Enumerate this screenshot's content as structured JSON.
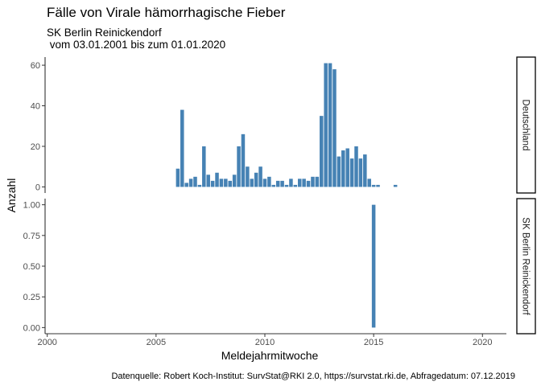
{
  "title": "Fälle von Virale hämorrhagische Fieber",
  "subtitle_line1": "SK Berlin Reinickendorf",
  "subtitle_line2": " vom 03.01.2001 bis zum 01.01.2020",
  "caption": "Datenquelle: Robert Koch-Institut: SurvStat@RKI 2.0, https://survstat.rki.de, Abfragedatum: 07.12.2019",
  "colors": {
    "bar": "#4682b4",
    "axis": "#333333",
    "text": "#000000"
  },
  "chart_data": {
    "type": "bar",
    "xlabel": "Meldejahrmitwoche",
    "ylabel": "Anzahl",
    "x_ticks": [
      2000,
      2005,
      2010,
      2015,
      2020
    ],
    "xlim": [
      1999.9,
      2021.1
    ],
    "bar_width": 0.2,
    "grid": false,
    "panels": [
      {
        "strip": "Deutschland",
        "ylim": [
          -3,
          64
        ],
        "y_ticks": [
          0,
          20,
          40,
          60
        ],
        "y_tick_labels": [
          "0",
          "20",
          "40",
          "60"
        ],
        "x": [
          2006.0,
          2006.2,
          2006.4,
          2006.6,
          2006.8,
          2007.0,
          2007.2,
          2007.4,
          2007.6,
          2007.8,
          2008.0,
          2008.2,
          2008.4,
          2008.6,
          2008.8,
          2009.0,
          2009.2,
          2009.4,
          2009.6,
          2009.8,
          2010.0,
          2010.2,
          2010.4,
          2010.6,
          2010.8,
          2011.0,
          2011.2,
          2011.4,
          2011.6,
          2011.8,
          2012.0,
          2012.2,
          2012.4,
          2012.6,
          2012.8,
          2013.0,
          2013.2,
          2013.4,
          2013.6,
          2013.8,
          2014.0,
          2014.2,
          2014.4,
          2014.6,
          2014.8,
          2015.0,
          2015.2,
          2015.4,
          2015.6,
          2015.8,
          2016.0,
          2016.2,
          2016.4,
          2016.6,
          2016.8,
          2017.0,
          2017.2,
          2017.4,
          2017.6,
          2017.8,
          2018.0
        ],
        "values": [
          9,
          38,
          2,
          4,
          5,
          1,
          20,
          6,
          3,
          7,
          4,
          4,
          3,
          6,
          20,
          26,
          10,
          4,
          7,
          10,
          4,
          5,
          1,
          3,
          3,
          1,
          4,
          1,
          4,
          4,
          3,
          5,
          5,
          35,
          61,
          61,
          58,
          15,
          18,
          19,
          14,
          20,
          14,
          16,
          4,
          1,
          1,
          0,
          0,
          0,
          1,
          0,
          0,
          0,
          0,
          0,
          0,
          0,
          0,
          0,
          0
        ]
      },
      {
        "strip": "SK Berlin Reinickendorf",
        "ylim": [
          -0.05,
          1.05
        ],
        "y_ticks": [
          0,
          0.25,
          0.5,
          0.75,
          1.0
        ],
        "y_tick_labels": [
          "0.00",
          "0.25",
          "0.50",
          "0.75",
          "1.00"
        ],
        "x": [
          2015.0
        ],
        "values": [
          1
        ]
      }
    ]
  }
}
